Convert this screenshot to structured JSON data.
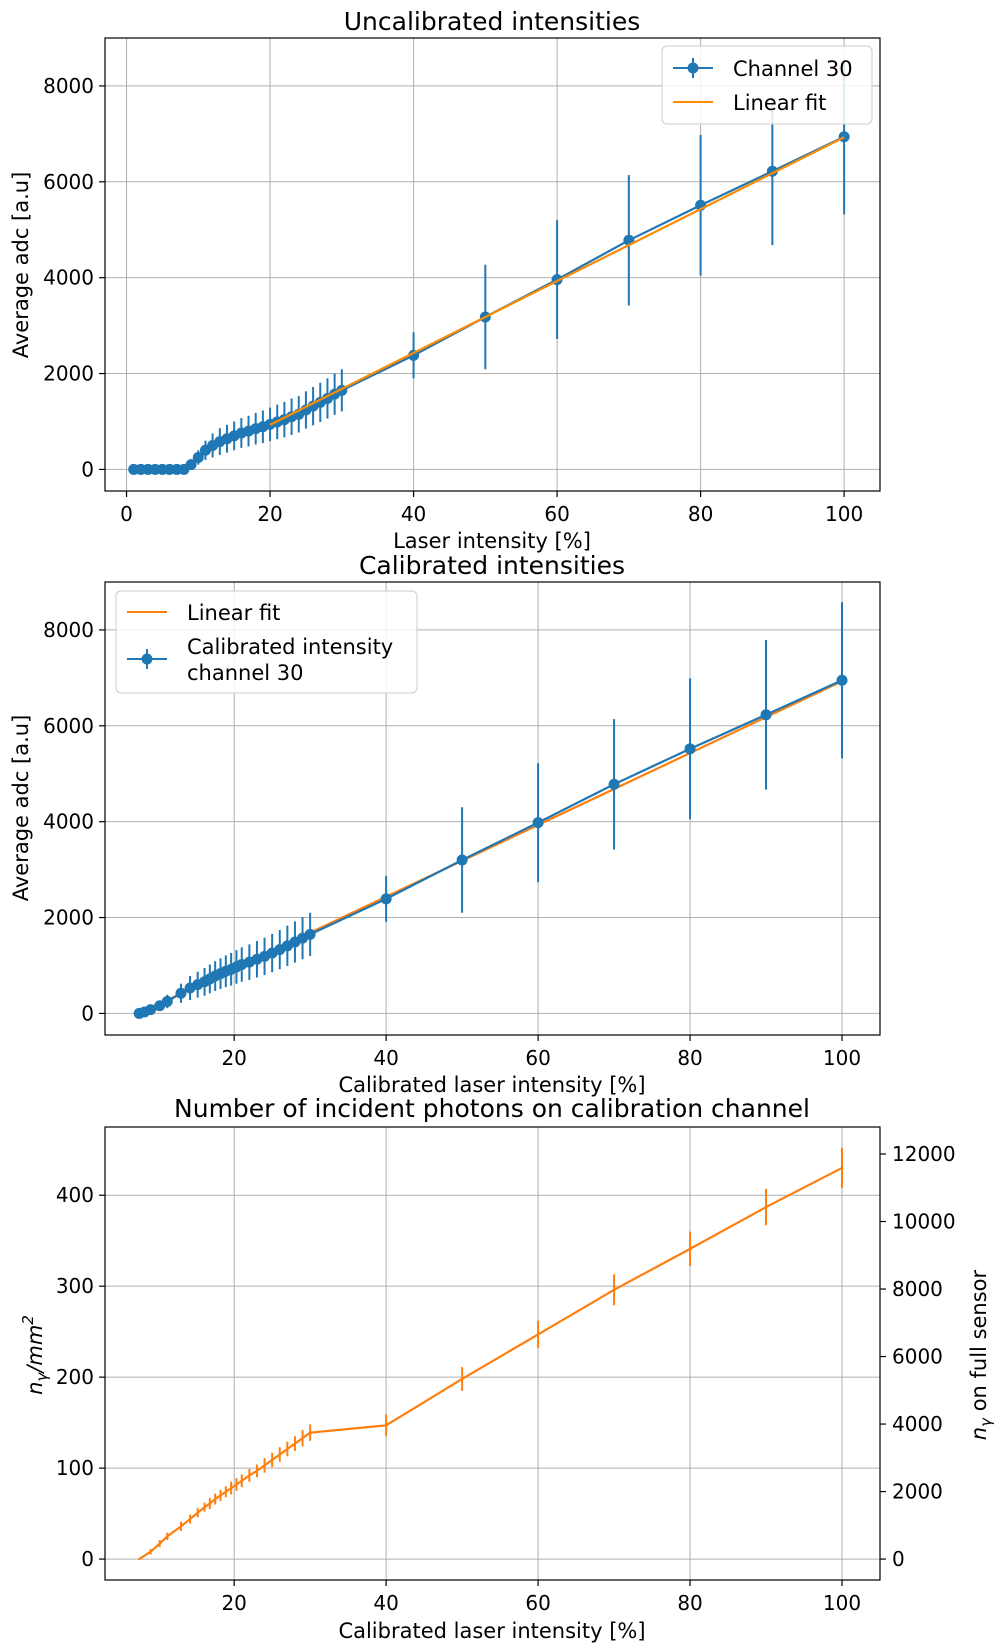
{
  "chart_data": [
    {
      "type": "line",
      "title": "Uncalibrated intensities",
      "xlabel": "Laser intensity [%]",
      "ylabel": "Average adc [a.u]",
      "xlim": [
        -3,
        105
      ],
      "ylim": [
        -450,
        9000
      ],
      "xticks": [
        0,
        20,
        40,
        60,
        80,
        100
      ],
      "yticks": [
        0,
        2000,
        4000,
        6000,
        8000
      ],
      "grid": true,
      "legend_position": "top-right",
      "series": [
        {
          "name": "Channel 30",
          "kind": "errorbar",
          "color": "#1f77b4",
          "x": [
            1,
            2,
            3,
            4,
            5,
            6,
            7,
            8,
            9,
            10,
            11,
            12,
            13,
            14,
            15,
            16,
            17,
            18,
            19,
            20,
            21,
            22,
            23,
            24,
            25,
            26,
            27,
            28,
            29,
            30,
            40,
            50,
            60,
            70,
            80,
            90,
            100
          ],
          "y": [
            0,
            0,
            0,
            0,
            0,
            0,
            0,
            0,
            100,
            250,
            400,
            500,
            580,
            640,
            700,
            760,
            800,
            850,
            890,
            940,
            990,
            1040,
            1100,
            1150,
            1240,
            1320,
            1400,
            1480,
            1570,
            1650,
            2380,
            3180,
            3960,
            4780,
            5510,
            6220,
            6940
          ],
          "yerr": [
            0,
            0,
            0,
            0,
            0,
            0,
            0,
            0,
            50,
            150,
            200,
            250,
            280,
            290,
            300,
            310,
            320,
            330,
            340,
            350,
            360,
            370,
            380,
            380,
            390,
            400,
            410,
            420,
            430,
            440,
            480,
            1090,
            1240,
            1360,
            1470,
            1540,
            1620
          ]
        },
        {
          "name": "Linear fit",
          "kind": "line",
          "color": "#ff8c00",
          "x": [
            20,
            100
          ],
          "y": [
            930,
            6930
          ]
        }
      ]
    },
    {
      "type": "line",
      "title": "Calibrated intensities",
      "xlabel": "Calibrated laser intensity [%]",
      "ylabel": "Average adc [a.u]",
      "xlim": [
        3,
        105
      ],
      "ylim": [
        -450,
        9000
      ],
      "xticks": [
        20,
        40,
        60,
        80,
        100
      ],
      "yticks": [
        0,
        2000,
        4000,
        6000,
        8000
      ],
      "grid": true,
      "legend_position": "top-left",
      "series": [
        {
          "name": "Linear fit",
          "kind": "line",
          "color": "#ff7f0e",
          "x": [
            7.5,
            100
          ],
          "y": [
            0,
            6930
          ]
        },
        {
          "name": "Calibrated intensity channel 30",
          "kind": "errorbar",
          "color": "#1f77b4",
          "x": [
            7.5,
            8.2,
            9,
            10.2,
            11.2,
            13,
            14.2,
            15.2,
            16.1,
            16.8,
            17.5,
            18.2,
            18.9,
            19.6,
            20.3,
            21,
            22,
            23,
            24,
            25,
            26,
            27,
            28,
            29,
            30,
            40,
            50,
            60,
            70,
            80,
            90,
            100
          ],
          "y": [
            0,
            30,
            80,
            160,
            250,
            420,
            530,
            600,
            660,
            720,
            780,
            830,
            880,
            920,
            970,
            1020,
            1070,
            1130,
            1190,
            1260,
            1330,
            1410,
            1490,
            1570,
            1650,
            2390,
            3200,
            3980,
            4780,
            5520,
            6230,
            6950
          ],
          "yerr": [
            0,
            20,
            50,
            90,
            140,
            200,
            250,
            270,
            290,
            300,
            310,
            320,
            330,
            340,
            350,
            360,
            370,
            380,
            390,
            400,
            410,
            420,
            430,
            440,
            450,
            480,
            1100,
            1240,
            1360,
            1470,
            1560,
            1630
          ]
        }
      ]
    },
    {
      "type": "line",
      "title": "Number of incident photons on calibration channel",
      "xlabel": "Calibrated laser intensity [%]",
      "ylabel_main": "n",
      "ylabel_sub": "γ",
      "ylabel_tail": "/mm",
      "ylabel_sup": "2",
      "ylabel_right_main": "n",
      "ylabel_right_sub": "γ",
      "ylabel_right_tail": " on full sensor",
      "xlim": [
        3,
        105
      ],
      "ylim": [
        -23,
        475
      ],
      "y2lim": [
        -620,
        12800
      ],
      "xticks": [
        20,
        40,
        60,
        80,
        100
      ],
      "yticks": [
        0,
        100,
        200,
        300,
        400
      ],
      "y2ticks": [
        0,
        2000,
        4000,
        6000,
        8000,
        10000,
        12000
      ],
      "grid": true,
      "series": [
        {
          "name": "",
          "kind": "errorbar",
          "color": "#ff7f0e",
          "x": [
            7.5,
            9,
            10.2,
            11.2,
            13,
            14.2,
            15.2,
            16.1,
            16.8,
            17.5,
            18.2,
            18.9,
            19.6,
            20.3,
            21,
            22,
            23,
            24,
            25,
            26,
            27,
            28,
            29,
            30,
            40,
            50,
            60,
            70,
            80,
            90,
            100
          ],
          "y": [
            0,
            8,
            17,
            25,
            36,
            44,
            51,
            57,
            61,
            66,
            70,
            74,
            78,
            82,
            86,
            92,
            97,
            103,
            109,
            115,
            121,
            127,
            133,
            139,
            147,
            198,
            247,
            296,
            341,
            387,
            430
          ],
          "yerr": [
            1,
            3,
            4,
            4,
            5,
            5,
            5,
            5,
            6,
            6,
            6,
            6,
            7,
            7,
            7,
            7,
            7,
            8,
            8,
            8,
            8,
            8,
            9,
            9,
            12,
            13,
            15,
            17,
            19,
            20,
            22
          ]
        }
      ]
    }
  ]
}
